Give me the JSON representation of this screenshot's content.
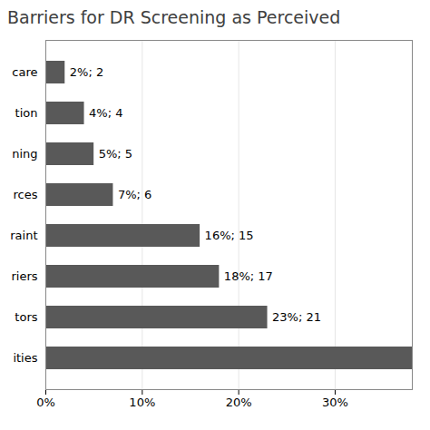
{
  "chart_data": {
    "type": "bar",
    "orientation": "horizontal",
    "title": "Barriers for DR Screening as Perceived",
    "categories": [
      "ities",
      "tors",
      "riers",
      "raint",
      "rces",
      "ning",
      "tion",
      "care"
    ],
    "values": [
      38,
      23,
      18,
      16,
      7,
      5,
      4,
      2
    ],
    "value_labels": [
      null,
      "23%; 21",
      "18%; 17",
      "16%; 15",
      "7%; 6",
      "5%; 5",
      "4%; 4",
      "2%; 2"
    ],
    "data_labels": true,
    "color": "#595959",
    "xlim": [
      0,
      38
    ],
    "xticks": [
      {
        "value": 0,
        "label": "0%"
      },
      {
        "value": 10,
        "label": "10%"
      },
      {
        "value": 20,
        "label": "20%"
      },
      {
        "value": 30,
        "label": "30%"
      }
    ],
    "grid": true
  }
}
